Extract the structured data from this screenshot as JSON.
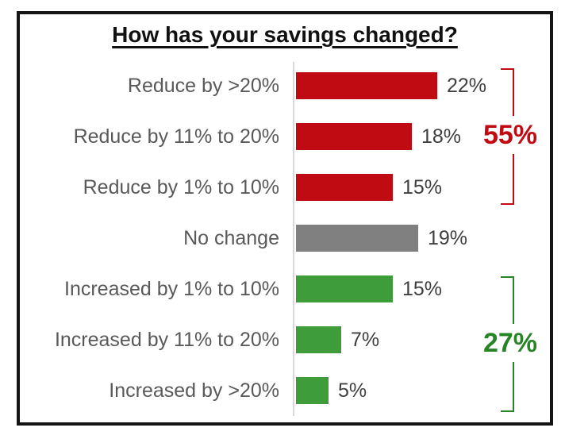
{
  "title": "How has your savings changed?",
  "chart_data": {
    "type": "bar",
    "orientation": "horizontal",
    "title": "How has your savings changed?",
    "categories": [
      "Reduce by >20%",
      "Reduce by 11% to 20%",
      "Reduce by 1% to 10%",
      "No change",
      "Increased by 1% to 10%",
      "Increased by 11% to 20%",
      "Increased by >20%"
    ],
    "values": [
      22,
      18,
      15,
      19,
      15,
      7,
      5
    ],
    "value_labels": [
      "22%",
      "18%",
      "15%",
      "19%",
      "15%",
      "7%",
      "5%"
    ],
    "bar_colors": [
      "#c00b13",
      "#c00b13",
      "#c00b13",
      "#808080",
      "#3f9c3a",
      "#3f9c3a",
      "#3f9c3a"
    ],
    "xlim": [
      0,
      25
    ],
    "grid": "off",
    "legend": "none",
    "annotations": [
      {
        "label": "55%",
        "color": "#c00b13",
        "covers": [
          "Reduce by >20%",
          "Reduce by 11% to 20%",
          "Reduce by 1% to 10%"
        ]
      },
      {
        "label": "27%",
        "color": "#278527",
        "covers": [
          "Increased by 1% to 10%",
          "Increased by 11% to 20%",
          "Increased by >20%"
        ]
      }
    ]
  },
  "colors": {
    "red": "#c00b13",
    "green_bar": "#3f9c3a",
    "green_text": "#278527",
    "gray_bar": "#808080",
    "category_text": "#595959",
    "value_text": "#3f3f3f",
    "axis_line": "#d9d9d9",
    "border": "#141414"
  }
}
